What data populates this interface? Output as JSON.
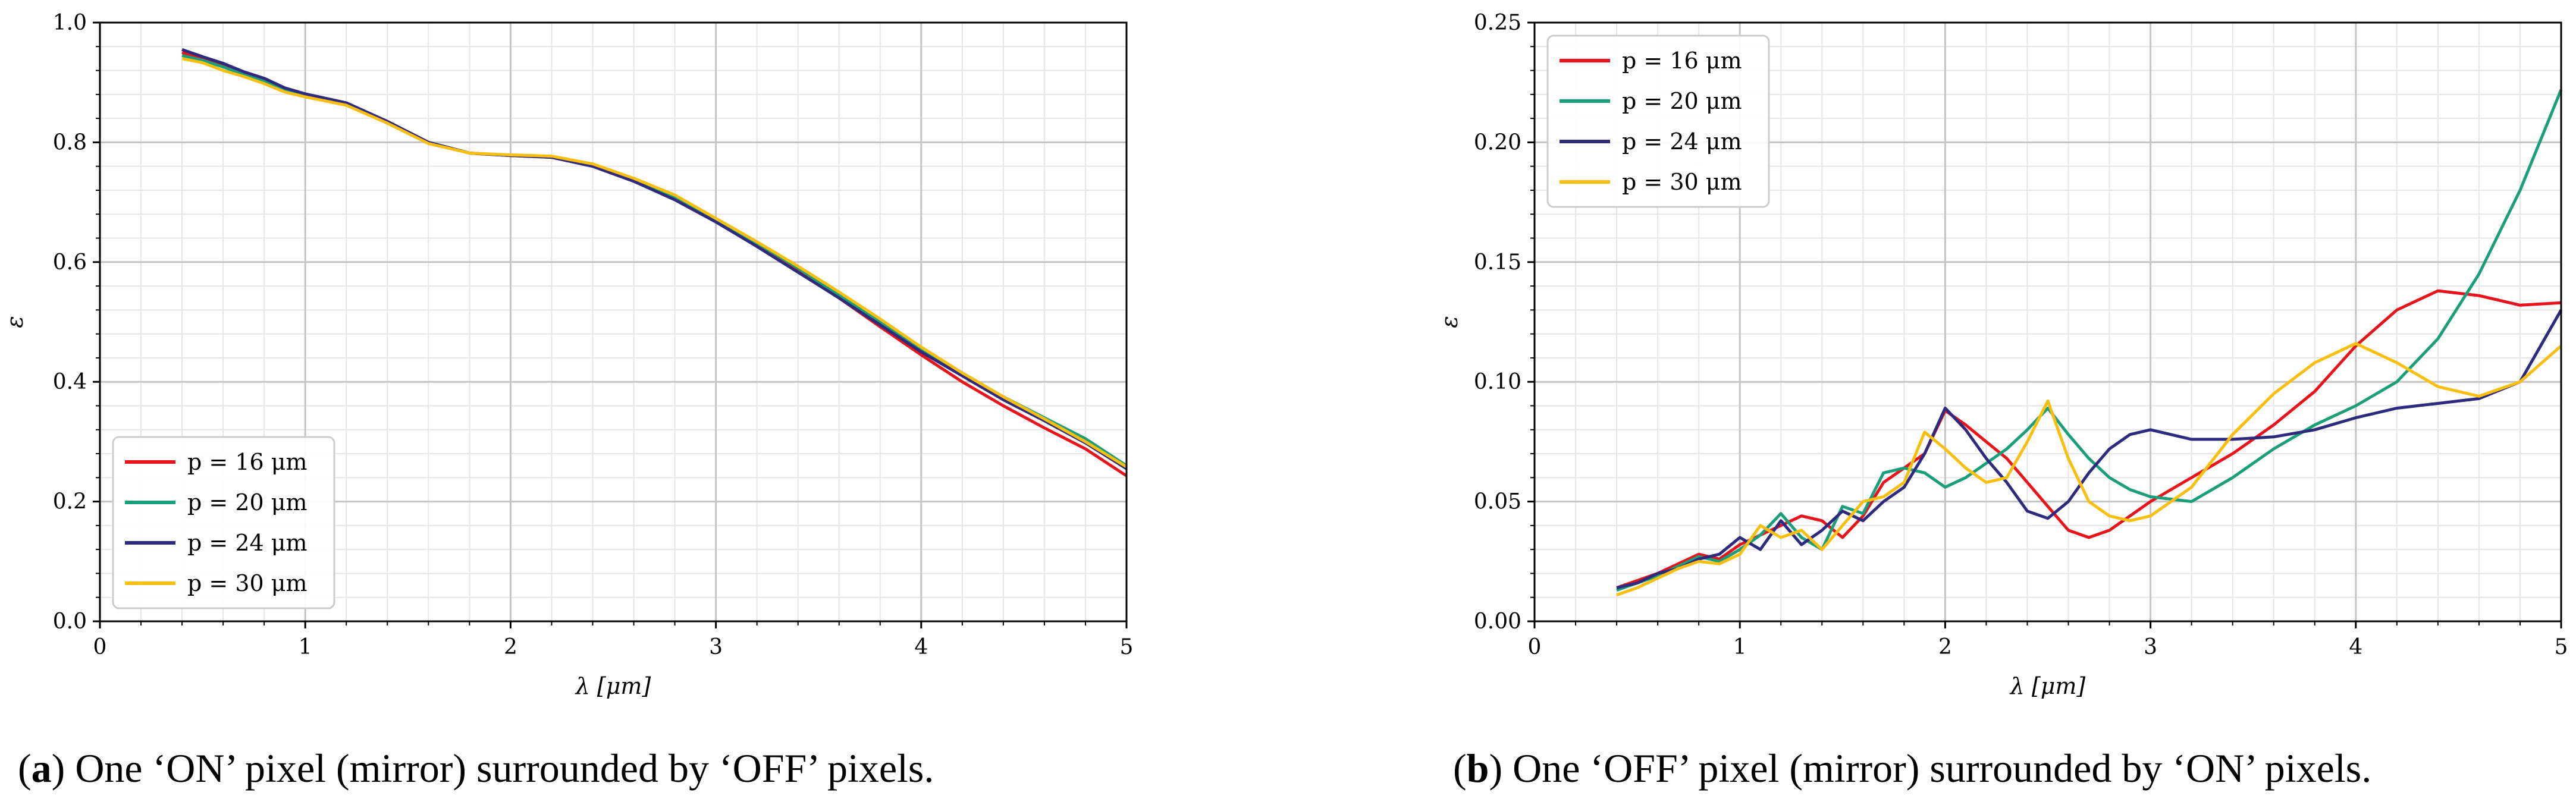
{
  "chart_data": [
    {
      "type": "line",
      "panel_letter": "a",
      "caption": "One ‘ON’ pixel (mirror) surrounded by ‘OFF’ pixels.",
      "xlabel": "λ [μm]",
      "ylabel": "ε",
      "xlim": [
        0,
        5
      ],
      "ylim": [
        0,
        1.0
      ],
      "xticks": [
        "0",
        "1",
        "2",
        "3",
        "4",
        "5"
      ],
      "yticks": [
        "0.0",
        "0.2",
        "0.4",
        "0.6",
        "0.8",
        "1.0"
      ],
      "grid": true,
      "legend_position": "lower-left",
      "series": [
        {
          "name": "p = 16 μm",
          "color": "#e8141b",
          "x": [
            0.4,
            0.5,
            0.6,
            0.7,
            0.8,
            0.9,
            1.0,
            1.2,
            1.4,
            1.6,
            1.8,
            2.0,
            2.2,
            2.4,
            2.6,
            2.8,
            3.0,
            3.2,
            3.4,
            3.6,
            3.8,
            4.0,
            4.2,
            4.4,
            4.6,
            4.8,
            5.0
          ],
          "y": [
            0.95,
            0.94,
            0.93,
            0.915,
            0.905,
            0.89,
            0.88,
            0.865,
            0.835,
            0.8,
            0.782,
            0.778,
            0.775,
            0.76,
            0.735,
            0.705,
            0.668,
            0.628,
            0.585,
            0.54,
            0.492,
            0.445,
            0.4,
            0.36,
            0.323,
            0.288,
            0.243
          ]
        },
        {
          "name": "p = 20 μm",
          "color": "#1b9e7a",
          "x": [
            0.4,
            0.5,
            0.6,
            0.7,
            0.8,
            0.9,
            1.0,
            1.2,
            1.4,
            1.6,
            1.8,
            2.0,
            2.2,
            2.4,
            2.6,
            2.8,
            3.0,
            3.2,
            3.4,
            3.6,
            3.8,
            4.0,
            4.2,
            4.4,
            4.6,
            4.8,
            5.0
          ],
          "y": [
            0.945,
            0.937,
            0.926,
            0.913,
            0.903,
            0.888,
            0.878,
            0.864,
            0.834,
            0.8,
            0.782,
            0.778,
            0.776,
            0.762,
            0.737,
            0.708,
            0.67,
            0.632,
            0.59,
            0.545,
            0.5,
            0.455,
            0.415,
            0.375,
            0.34,
            0.305,
            0.26
          ]
        },
        {
          "name": "p = 24 μm",
          "color": "#2e2a7d",
          "x": [
            0.4,
            0.5,
            0.6,
            0.7,
            0.8,
            0.9,
            1.0,
            1.2,
            1.4,
            1.6,
            1.8,
            2.0,
            2.2,
            2.4,
            2.6,
            2.8,
            3.0,
            3.2,
            3.4,
            3.6,
            3.8,
            4.0,
            4.2,
            4.4,
            4.6,
            4.8,
            5.0
          ],
          "y": [
            0.955,
            0.943,
            0.932,
            0.918,
            0.907,
            0.891,
            0.881,
            0.866,
            0.835,
            0.8,
            0.782,
            0.778,
            0.775,
            0.76,
            0.735,
            0.704,
            0.667,
            0.626,
            0.583,
            0.54,
            0.495,
            0.45,
            0.41,
            0.37,
            0.335,
            0.298,
            0.255
          ]
        },
        {
          "name": "p = 30 μm",
          "color": "#f9bf10",
          "x": [
            0.4,
            0.5,
            0.6,
            0.7,
            0.8,
            0.9,
            1.0,
            1.2,
            1.4,
            1.6,
            1.8,
            2.0,
            2.2,
            2.4,
            2.6,
            2.8,
            3.0,
            3.2,
            3.4,
            3.6,
            3.8,
            4.0,
            4.2,
            4.4,
            4.6,
            4.8,
            5.0
          ],
          "y": [
            0.94,
            0.933,
            0.92,
            0.91,
            0.898,
            0.884,
            0.876,
            0.862,
            0.832,
            0.798,
            0.782,
            0.779,
            0.777,
            0.764,
            0.74,
            0.712,
            0.673,
            0.634,
            0.593,
            0.55,
            0.505,
            0.458,
            0.415,
            0.375,
            0.338,
            0.3,
            0.258
          ]
        }
      ]
    },
    {
      "type": "line",
      "panel_letter": "b",
      "caption": "One ‘OFF’ pixel (mirror) surrounded by ‘ON’ pixels.",
      "xlabel": "λ [μm]",
      "ylabel": "ε",
      "xlim": [
        0,
        5
      ],
      "ylim": [
        0,
        0.25
      ],
      "xticks": [
        "0",
        "1",
        "2",
        "3",
        "4",
        "5"
      ],
      "yticks": [
        "0.00",
        "0.05",
        "0.10",
        "0.15",
        "0.20",
        "0.25"
      ],
      "grid": true,
      "legend_position": "upper-left",
      "series": [
        {
          "name": "p = 16 μm",
          "color": "#e8141b",
          "x": [
            0.4,
            0.5,
            0.6,
            0.7,
            0.8,
            0.9,
            1.0,
            1.1,
            1.2,
            1.3,
            1.4,
            1.5,
            1.6,
            1.7,
            1.8,
            1.9,
            2.0,
            2.1,
            2.2,
            2.3,
            2.4,
            2.5,
            2.6,
            2.7,
            2.8,
            2.9,
            3.0,
            3.2,
            3.4,
            3.6,
            3.8,
            4.0,
            4.2,
            4.4,
            4.6,
            4.8,
            5.0
          ],
          "y": [
            0.014,
            0.017,
            0.02,
            0.024,
            0.028,
            0.026,
            0.032,
            0.036,
            0.04,
            0.044,
            0.042,
            0.035,
            0.044,
            0.058,
            0.064,
            0.07,
            0.088,
            0.082,
            0.075,
            0.068,
            0.058,
            0.048,
            0.038,
            0.035,
            0.038,
            0.044,
            0.05,
            0.06,
            0.07,
            0.082,
            0.096,
            0.115,
            0.13,
            0.138,
            0.136,
            0.132,
            0.133
          ]
        },
        {
          "name": "p = 20 μm",
          "color": "#1b9e7a",
          "x": [
            0.4,
            0.5,
            0.6,
            0.7,
            0.8,
            0.9,
            1.0,
            1.1,
            1.2,
            1.3,
            1.4,
            1.5,
            1.6,
            1.7,
            1.8,
            1.9,
            2.0,
            2.1,
            2.2,
            2.3,
            2.4,
            2.5,
            2.6,
            2.7,
            2.8,
            2.9,
            3.0,
            3.2,
            3.4,
            3.6,
            3.8,
            4.0,
            4.2,
            4.4,
            4.6,
            4.8,
            5.0
          ],
          "y": [
            0.013,
            0.016,
            0.019,
            0.023,
            0.027,
            0.025,
            0.03,
            0.036,
            0.045,
            0.035,
            0.03,
            0.048,
            0.045,
            0.062,
            0.064,
            0.062,
            0.056,
            0.06,
            0.066,
            0.072,
            0.08,
            0.089,
            0.078,
            0.068,
            0.06,
            0.055,
            0.052,
            0.05,
            0.06,
            0.072,
            0.082,
            0.09,
            0.1,
            0.118,
            0.145,
            0.18,
            0.222
          ]
        },
        {
          "name": "p = 24 μm",
          "color": "#2e2a7d",
          "x": [
            0.4,
            0.5,
            0.6,
            0.7,
            0.8,
            0.9,
            1.0,
            1.1,
            1.2,
            1.3,
            1.4,
            1.5,
            1.6,
            1.7,
            1.8,
            1.9,
            2.0,
            2.1,
            2.2,
            2.3,
            2.4,
            2.5,
            2.6,
            2.7,
            2.8,
            2.9,
            3.0,
            3.2,
            3.4,
            3.6,
            3.8,
            4.0,
            4.2,
            4.4,
            4.6,
            4.8,
            5.0
          ],
          "y": [
            0.014,
            0.016,
            0.02,
            0.022,
            0.026,
            0.028,
            0.035,
            0.03,
            0.042,
            0.032,
            0.038,
            0.046,
            0.042,
            0.05,
            0.056,
            0.07,
            0.089,
            0.08,
            0.068,
            0.058,
            0.046,
            0.043,
            0.05,
            0.062,
            0.072,
            0.078,
            0.08,
            0.076,
            0.076,
            0.077,
            0.08,
            0.085,
            0.089,
            0.091,
            0.093,
            0.1,
            0.13
          ]
        },
        {
          "name": "p = 30 μm",
          "color": "#f9bf10",
          "x": [
            0.4,
            0.5,
            0.6,
            0.7,
            0.8,
            0.9,
            1.0,
            1.1,
            1.2,
            1.3,
            1.4,
            1.5,
            1.6,
            1.7,
            1.8,
            1.9,
            2.0,
            2.1,
            2.2,
            2.3,
            2.4,
            2.5,
            2.6,
            2.7,
            2.8,
            2.9,
            3.0,
            3.2,
            3.4,
            3.6,
            3.8,
            4.0,
            4.2,
            4.4,
            4.6,
            4.8,
            5.0
          ],
          "y": [
            0.011,
            0.014,
            0.018,
            0.022,
            0.025,
            0.024,
            0.028,
            0.04,
            0.035,
            0.038,
            0.03,
            0.04,
            0.05,
            0.052,
            0.058,
            0.079,
            0.072,
            0.064,
            0.058,
            0.06,
            0.075,
            0.092,
            0.068,
            0.05,
            0.044,
            0.042,
            0.044,
            0.056,
            0.078,
            0.095,
            0.108,
            0.116,
            0.108,
            0.098,
            0.094,
            0.1,
            0.115
          ]
        }
      ]
    }
  ]
}
